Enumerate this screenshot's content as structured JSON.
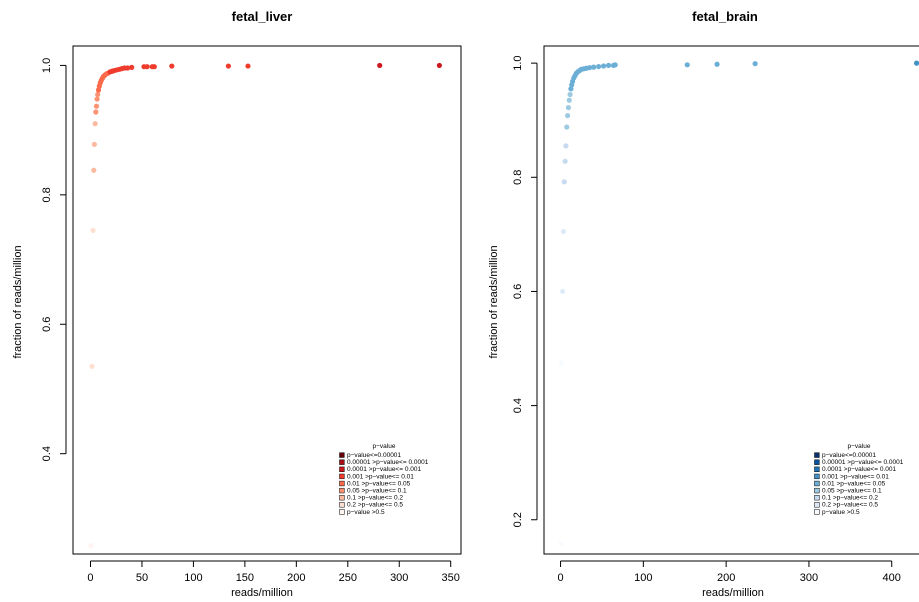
{
  "legend": {
    "title": "p−value",
    "entries": [
      "p−value<=0.00001",
      "0.00001 >p−value<= 0.0001",
      "0.0001 >p−value<= 0.001",
      "0.001 >p−value<= 0.01",
      "0.01 >p−value<= 0.05",
      "0.05 >p−value<= 0.1",
      "0.1 >p−value<= 0.2",
      "0.2 >p−value<= 0.5",
      "p−value >0.5"
    ]
  },
  "chart_data": [
    {
      "type": "scatter",
      "title": "fetal_liver",
      "xlabel": "reads/million",
      "ylabel": "fraction of reads/million",
      "xlim": [
        -17,
        360
      ],
      "ylim": [
        0.245,
        1.03
      ],
      "xticks": [
        0,
        50,
        100,
        150,
        200,
        250,
        300,
        350
      ],
      "yticks": [
        0.4,
        0.6,
        0.8,
        1.0
      ],
      "ytick_labels": [
        "0.4",
        "0.6",
        "0.8",
        "1.0"
      ],
      "legend_position": "bottom-right",
      "grid": false,
      "palette": [
        "#67000d",
        "#a50f15",
        "#cb181d",
        "#ef3b2c",
        "#fb6a4a",
        "#fc9272",
        "#fcbba1",
        "#fee0d2",
        "#fff5f0"
      ],
      "points": [
        [
          0.5,
          0.258,
          8
        ],
        [
          1.5,
          0.535,
          7
        ],
        [
          2.5,
          0.745,
          7
        ],
        [
          3.2,
          0.838,
          6
        ],
        [
          3.8,
          0.878,
          6
        ],
        [
          4.5,
          0.91,
          6
        ],
        [
          5.2,
          0.928,
          5
        ],
        [
          5.8,
          0.937,
          5
        ],
        [
          6.4,
          0.948,
          5
        ],
        [
          7.0,
          0.955,
          5
        ],
        [
          7.8,
          0.962,
          4
        ],
        [
          8.6,
          0.968,
          4
        ],
        [
          9.5,
          0.973,
          4
        ],
        [
          10.5,
          0.977,
          4
        ],
        [
          11.5,
          0.98,
          4
        ],
        [
          12.6,
          0.983,
          4
        ],
        [
          14,
          0.985,
          4
        ],
        [
          15.5,
          0.987,
          4
        ],
        [
          17,
          0.988,
          4
        ],
        [
          19,
          0.99,
          3
        ],
        [
          21,
          0.991,
          3
        ],
        [
          23,
          0.992,
          3
        ],
        [
          25.5,
          0.993,
          3
        ],
        [
          28,
          0.994,
          3
        ],
        [
          30.5,
          0.995,
          3
        ],
        [
          33,
          0.996,
          3
        ],
        [
          36,
          0.996,
          3
        ],
        [
          40,
          0.997,
          3
        ],
        [
          52,
          0.998,
          3
        ],
        [
          55,
          0.998,
          3
        ],
        [
          60,
          0.998,
          3
        ],
        [
          62,
          0.998,
          3
        ],
        [
          79,
          0.999,
          3
        ],
        [
          134,
          0.999,
          3
        ],
        [
          153,
          0.999,
          3
        ],
        [
          281,
          1.0,
          2
        ],
        [
          339,
          1.0,
          2
        ]
      ]
    },
    {
      "type": "scatter",
      "title": "fetal_brain",
      "xlabel": "reads/million",
      "ylabel": "fraction of reads/million",
      "xlim": [
        -20,
        445
      ],
      "ylim": [
        0.14,
        1.03
      ],
      "xticks": [
        0,
        100,
        200,
        300,
        400
      ],
      "yticks": [
        0.2,
        0.4,
        0.6,
        0.8,
        1.0
      ],
      "ytick_labels": [
        "0.2",
        "0.4",
        "0.6",
        "0.8",
        "1.0"
      ],
      "legend_position": "bottom-right",
      "grid": false,
      "palette": [
        "#08306b",
        "#08519c",
        "#2171b5",
        "#4292c6",
        "#6baed6",
        "#9ecae1",
        "#c6dbef",
        "#deebf7",
        "#f7fbff"
      ],
      "points": [
        [
          0.5,
          0.158,
          8
        ],
        [
          1.0,
          0.475,
          8
        ],
        [
          2.5,
          0.6,
          7
        ],
        [
          3.5,
          0.705,
          7
        ],
        [
          4.5,
          0.792,
          6
        ],
        [
          5.5,
          0.828,
          6
        ],
        [
          6.5,
          0.855,
          6
        ],
        [
          7.5,
          0.888,
          5
        ],
        [
          8.5,
          0.908,
          5
        ],
        [
          9.5,
          0.922,
          5
        ],
        [
          10.5,
          0.935,
          5
        ],
        [
          11.5,
          0.945,
          5
        ],
        [
          12.5,
          0.955,
          4
        ],
        [
          13.5,
          0.962,
          4
        ],
        [
          14.5,
          0.968,
          4
        ],
        [
          16,
          0.974,
          4
        ],
        [
          17.5,
          0.978,
          4
        ],
        [
          19,
          0.982,
          4
        ],
        [
          21,
          0.985,
          4
        ],
        [
          23,
          0.987,
          4
        ],
        [
          25,
          0.989,
          4
        ],
        [
          28,
          0.99,
          4
        ],
        [
          31,
          0.991,
          4
        ],
        [
          35,
          0.992,
          4
        ],
        [
          40,
          0.993,
          4
        ],
        [
          46,
          0.994,
          4
        ],
        [
          52,
          0.995,
          4
        ],
        [
          58,
          0.996,
          4
        ],
        [
          64,
          0.996,
          4
        ],
        [
          66,
          0.997,
          4
        ],
        [
          153,
          0.997,
          4
        ],
        [
          189,
          0.998,
          4
        ],
        [
          235,
          0.999,
          4
        ],
        [
          430,
          1.0,
          3
        ]
      ]
    }
  ]
}
